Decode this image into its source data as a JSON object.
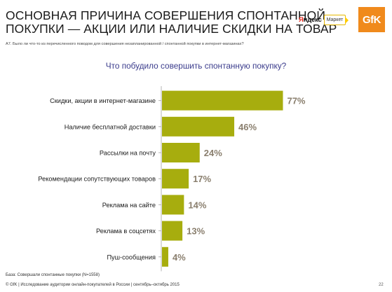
{
  "header": {
    "title_lines": [
      "ОСНОВНАЯ ПРИЧИНА СОВЕРШЕНИЯ СПОНТАННОЙ",
      "ПОКУПКИ — АКЦИИ ИЛИ НАЛИЧИЕ СКИДКИ НА ТОВАР"
    ],
    "yandex_logo_text": "Яндекс",
    "market_logo_text": "Маркет",
    "gfk_logo_text": "GfK"
  },
  "question_ref": "A7. Было ли что-то из перечисленного поводом для совершения незапланированной / спонтанной покупки в интернет-магазинах?",
  "footer": {
    "base": "База: Совершали спонтанные покупки (N=1558)",
    "copyright": "© GfK | Исследование аудитории онлайн-покупателей в России | сентябрь–октябрь 2015",
    "page_number": "22"
  },
  "colors": {
    "bar": "#a7ad0e",
    "value_label": "#8a7f6e",
    "title": "#3b3c8c",
    "axis": "#b4b4b4"
  },
  "chart_data": {
    "type": "bar",
    "orientation": "horizontal",
    "title": "Что побудило совершить спонтанную покупку?",
    "categories": [
      "Скидки, акции в интернет-магазине",
      "Наличие бесплатной доставки",
      "Рассылки на почту",
      "Рекомендации сопутствующих товаров",
      "Реклама на сайте",
      "Реклама в соцсетях",
      "Пуш-сообщения"
    ],
    "values": [
      77,
      46,
      24,
      17,
      14,
      13,
      4
    ],
    "value_labels": [
      "77%",
      "46%",
      "24%",
      "17%",
      "14%",
      "13%",
      "4%"
    ],
    "xlim": [
      0,
      100
    ],
    "grid": false,
    "legend": "none"
  }
}
